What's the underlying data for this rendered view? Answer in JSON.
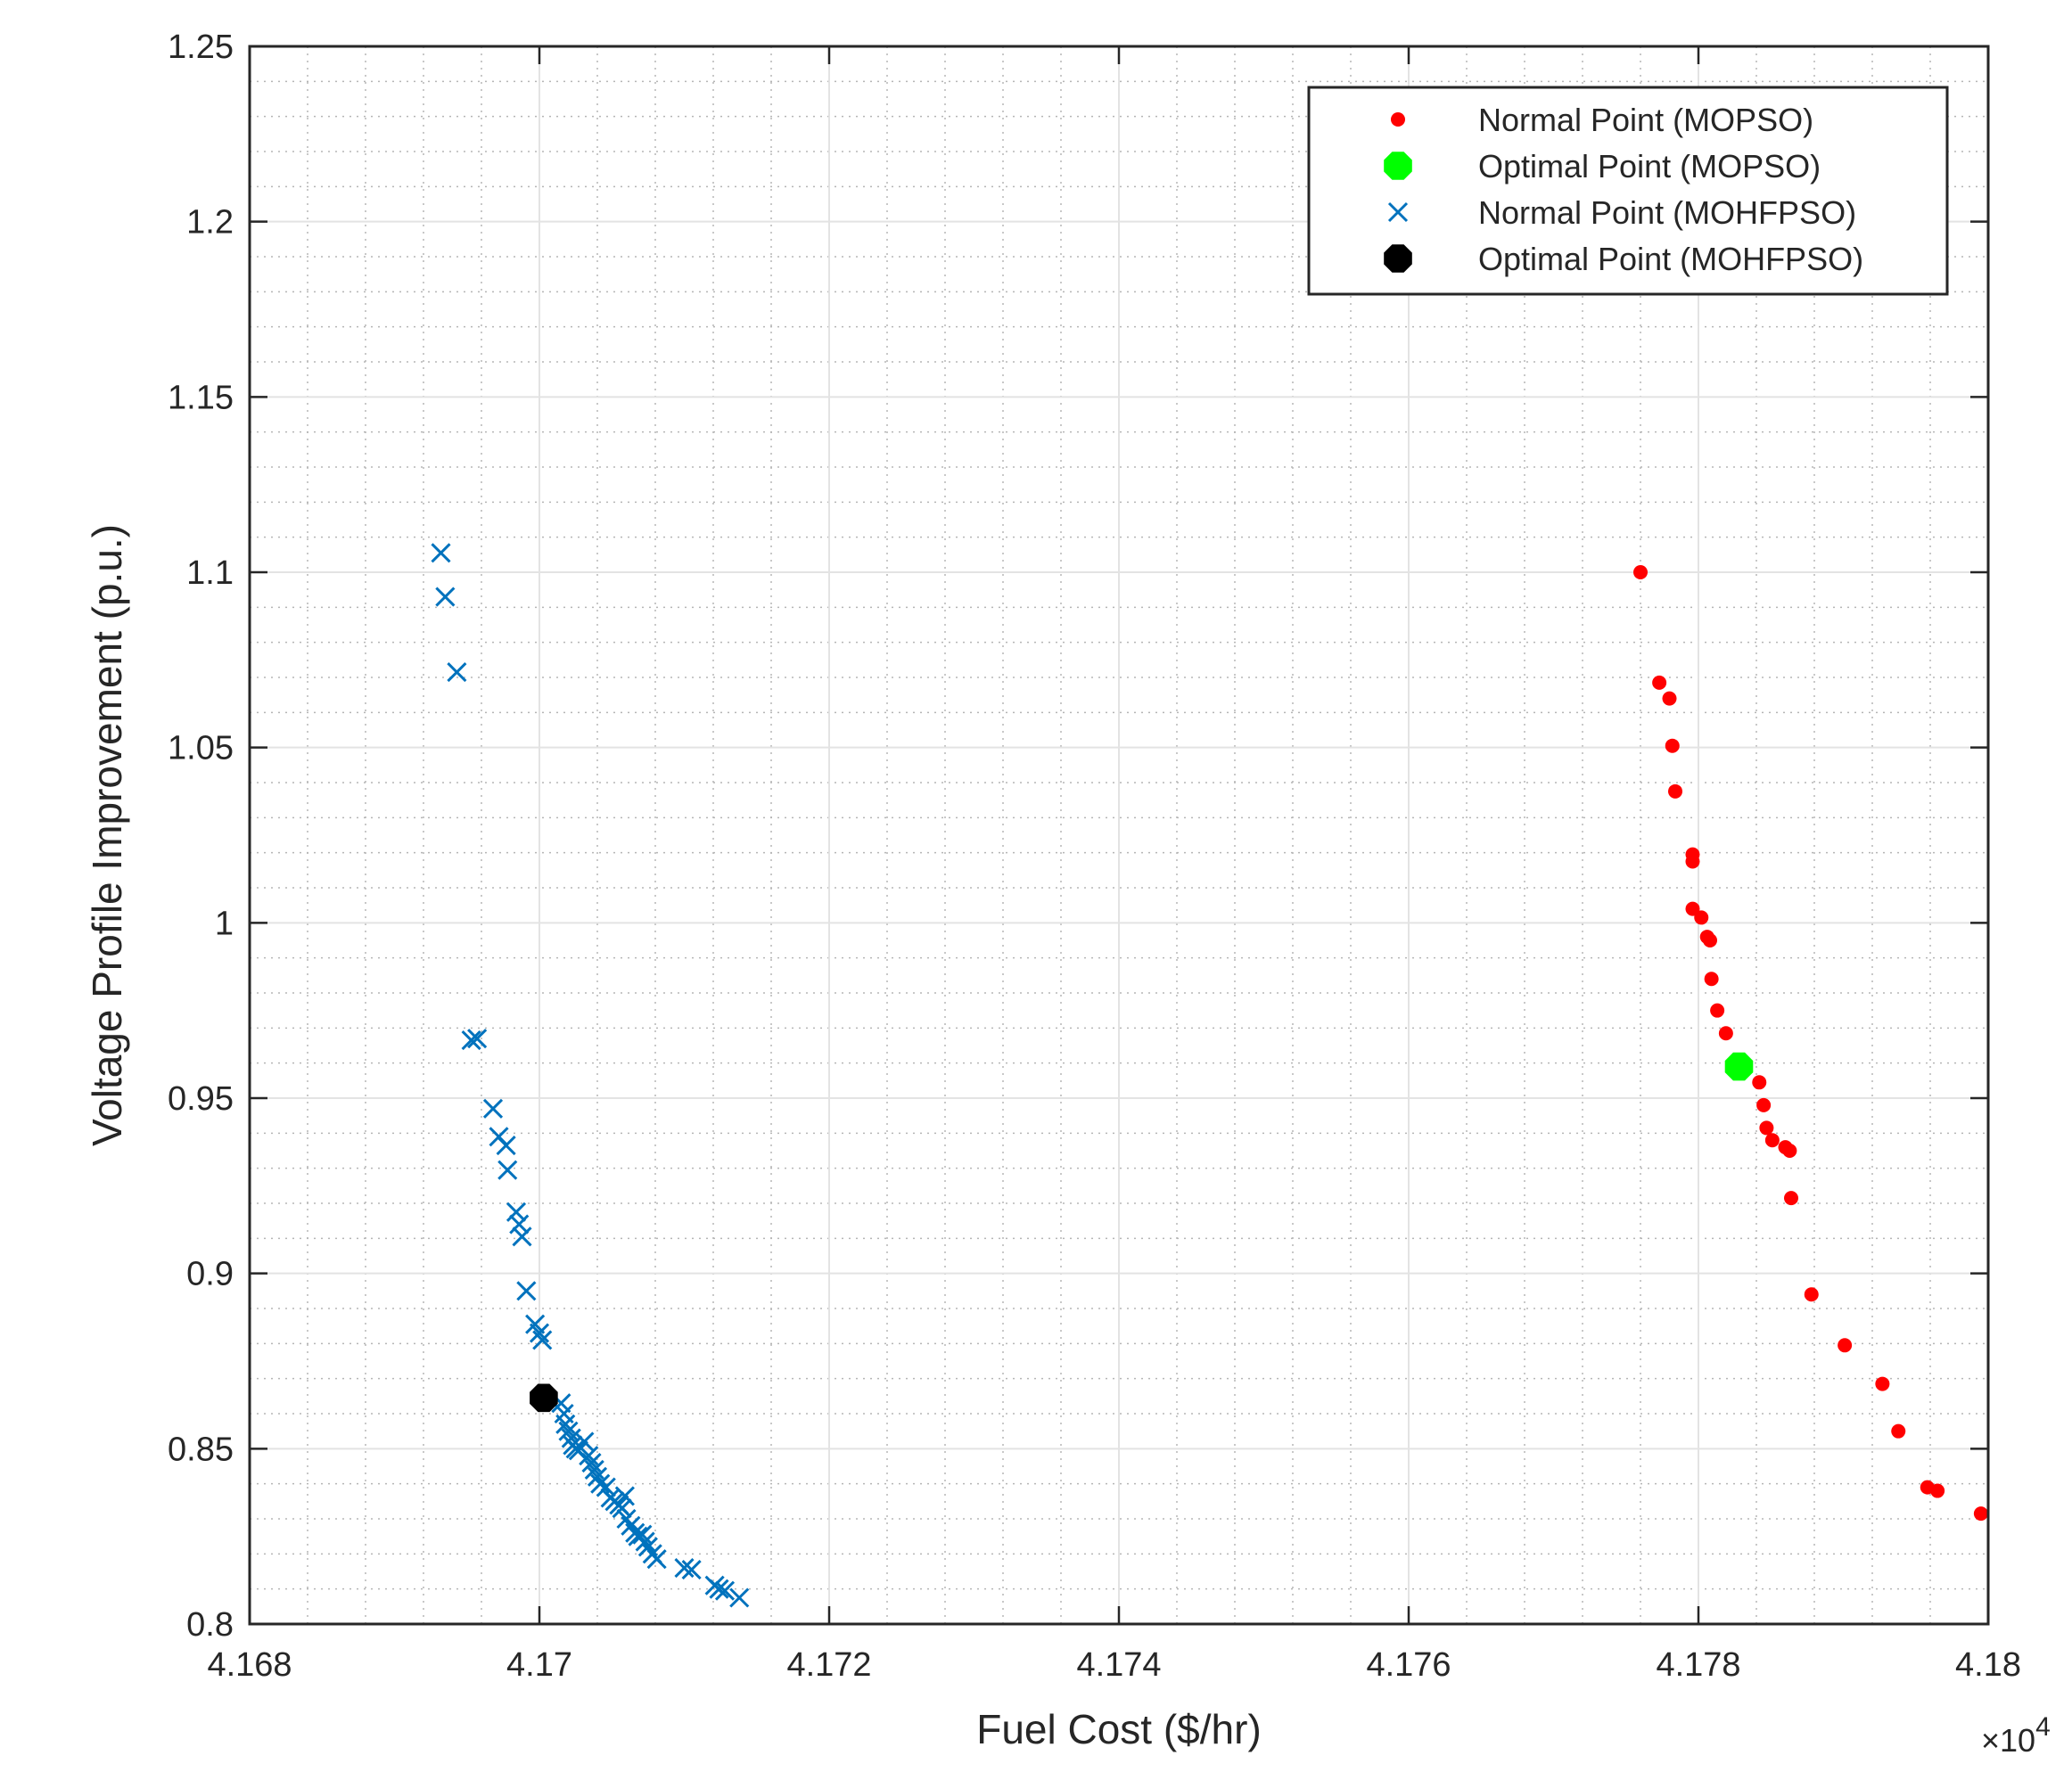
{
  "chart_data": {
    "type": "scatter",
    "title": "",
    "xlabel": "Fuel Cost ($/hr)",
    "ylabel": "Voltage Profile Improvement (p.u.)",
    "x_multiplier": "×10",
    "x_multiplier_exp": "4",
    "xlim": [
      4.168,
      4.18
    ],
    "ylim": [
      0.8,
      1.25
    ],
    "x_ticks": [
      4.168,
      4.17,
      4.172,
      4.174,
      4.176,
      4.178,
      4.18
    ],
    "x_tick_labels": [
      "4.168",
      "4.17",
      "4.172",
      "4.174",
      "4.176",
      "4.178",
      "4.18"
    ],
    "y_ticks": [
      0.8,
      0.85,
      0.9,
      0.95,
      1.0,
      1.05,
      1.1,
      1.15,
      1.2,
      1.25
    ],
    "y_tick_labels": [
      "0.8",
      "0.85",
      "0.9",
      "0.95",
      "1",
      "1.05",
      "1.1",
      "1.15",
      "1.2",
      "1.25"
    ],
    "grid": true,
    "minor_grid": true,
    "legend_position": "top-right",
    "series": [
      {
        "name": "Normal Point (MOPSO)",
        "marker": "dot",
        "color": "#ff0000",
        "points": [
          [
            4.1776,
            1.1
          ],
          [
            4.17773,
            1.0685
          ],
          [
            4.1778,
            1.064
          ],
          [
            4.17782,
            1.0505
          ],
          [
            4.17784,
            1.0375
          ],
          [
            4.17796,
            1.0195
          ],
          [
            4.17796,
            1.0175
          ],
          [
            4.17796,
            1.004
          ],
          [
            4.17802,
            1.0015
          ],
          [
            4.17806,
            0.996
          ],
          [
            4.17808,
            0.995
          ],
          [
            4.17809,
            0.984
          ],
          [
            4.17813,
            0.975
          ],
          [
            4.17819,
            0.9685
          ],
          [
            4.17842,
            0.9545
          ],
          [
            4.17845,
            0.948
          ],
          [
            4.17847,
            0.9415
          ],
          [
            4.17851,
            0.938
          ],
          [
            4.1786,
            0.936
          ],
          [
            4.17863,
            0.935
          ],
          [
            4.17864,
            0.9215
          ],
          [
            4.17878,
            0.894
          ],
          [
            4.17901,
            0.8795
          ],
          [
            4.17927,
            0.8685
          ],
          [
            4.17938,
            0.855
          ],
          [
            4.17958,
            0.839
          ],
          [
            4.17965,
            0.838
          ],
          [
            4.17995,
            0.8315
          ]
        ]
      },
      {
        "name": "Optimal Point (MOPSO)",
        "marker": "octagon",
        "color": "#00ff00",
        "points": [
          [
            4.17828,
            0.959
          ]
        ]
      },
      {
        "name": "Normal Point (MOHFPSO)",
        "marker": "x",
        "color": "#0072bd",
        "points": [
          [
            4.16932,
            1.1055
          ],
          [
            4.16935,
            1.093
          ],
          [
            4.16943,
            1.0715
          ],
          [
            4.16953,
            0.9665
          ],
          [
            4.16957,
            0.967
          ],
          [
            4.16968,
            0.947
          ],
          [
            4.16972,
            0.939
          ],
          [
            4.16977,
            0.9365
          ],
          [
            4.16978,
            0.9295
          ],
          [
            4.16984,
            0.9175
          ],
          [
            4.16986,
            0.914
          ],
          [
            4.16988,
            0.9105
          ],
          [
            4.16991,
            0.895
          ],
          [
            4.16997,
            0.8855
          ],
          [
            4.17,
            0.883
          ],
          [
            4.17002,
            0.881
          ],
          [
            4.17015,
            0.863
          ],
          [
            4.17017,
            0.86
          ],
          [
            4.17018,
            0.857
          ],
          [
            4.1702,
            0.855
          ],
          [
            4.17022,
            0.853
          ],
          [
            4.17023,
            0.851
          ],
          [
            4.17025,
            0.85
          ],
          [
            4.17027,
            0.8495
          ],
          [
            4.17031,
            0.852
          ],
          [
            4.17034,
            0.848
          ],
          [
            4.17036,
            0.846
          ],
          [
            4.17038,
            0.844
          ],
          [
            4.1704,
            0.842
          ],
          [
            4.17042,
            0.84
          ],
          [
            4.17046,
            0.839
          ],
          [
            4.17049,
            0.836
          ],
          [
            4.17052,
            0.835
          ],
          [
            4.17055,
            0.834
          ],
          [
            4.17057,
            0.833
          ],
          [
            4.17059,
            0.8365
          ],
          [
            4.1706,
            0.83
          ],
          [
            4.17063,
            0.828
          ],
          [
            4.17066,
            0.826
          ],
          [
            4.17068,
            0.825
          ],
          [
            4.17071,
            0.8255
          ],
          [
            4.17073,
            0.8235
          ],
          [
            4.17075,
            0.822
          ],
          [
            4.17078,
            0.82
          ],
          [
            4.17081,
            0.8185
          ],
          [
            4.171,
            0.816
          ],
          [
            4.17105,
            0.8155
          ],
          [
            4.17121,
            0.811
          ],
          [
            4.17124,
            0.81
          ],
          [
            4.17128,
            0.8095
          ],
          [
            4.17138,
            0.8075
          ]
        ]
      },
      {
        "name": "Optimal Point (MOHFPSO)",
        "marker": "octagon",
        "color": "#000000",
        "points": [
          [
            4.17003,
            0.8645
          ]
        ]
      }
    ]
  }
}
